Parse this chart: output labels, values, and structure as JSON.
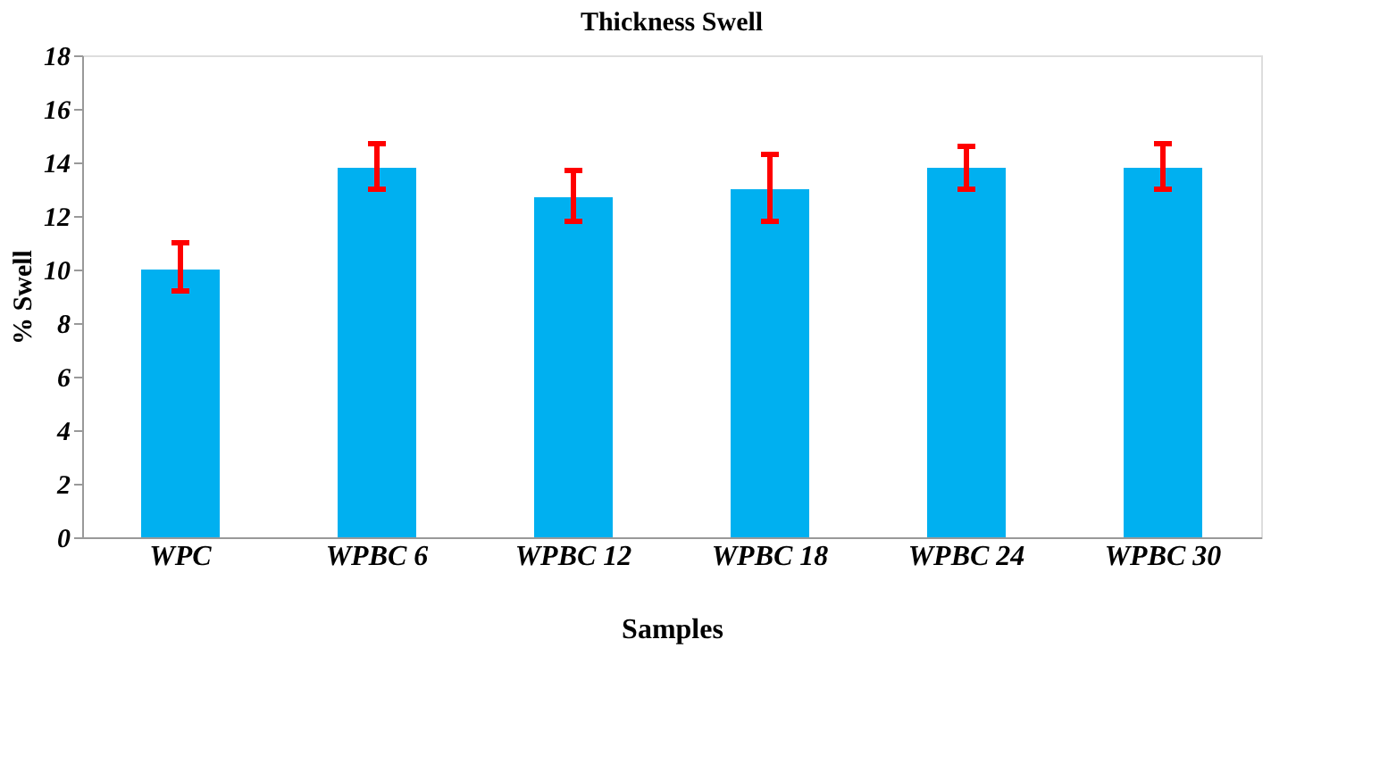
{
  "chart_data": {
    "type": "bar",
    "title": "Thickness Swell",
    "xlabel": "Samples",
    "ylabel": "% Swell",
    "categories": [
      "WPC",
      "WPBC 6",
      "WPBC 12",
      "WPBC 18",
      "WPBC 24",
      "WPBC 30"
    ],
    "series": [
      {
        "color": "#00b0f0",
        "values": [
          10.0,
          13.8,
          12.7,
          13.0,
          13.8,
          13.8
        ],
        "errors": [
          [
            9.2,
            11.0
          ],
          [
            13.0,
            14.7
          ],
          [
            11.8,
            13.7
          ],
          [
            11.8,
            14.3
          ],
          [
            13.0,
            14.6
          ],
          [
            13.0,
            14.7
          ]
        ]
      }
    ],
    "ylim": [
      0,
      18
    ],
    "yticks": [
      0,
      2,
      4,
      6,
      8,
      10,
      12,
      14,
      16,
      18
    ],
    "grid": false,
    "legend": false
  }
}
